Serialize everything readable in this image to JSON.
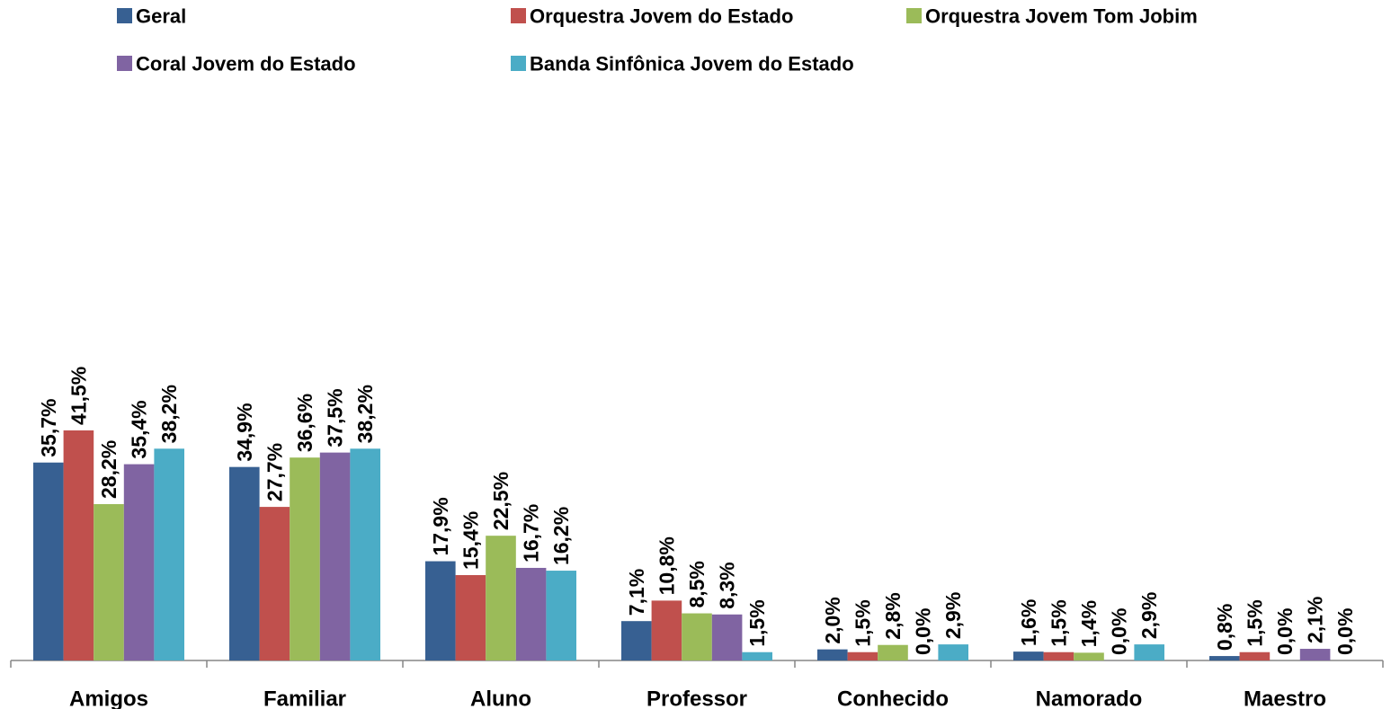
{
  "chart_data": {
    "type": "bar",
    "categories": [
      "Amigos",
      "Familiar",
      "Aluno",
      "Professor",
      "Conhecido",
      "Namorado",
      "Maestro"
    ],
    "series": [
      {
        "name": "Geral",
        "color": "#376092",
        "values": [
          35.7,
          34.9,
          17.9,
          7.1,
          2.0,
          1.6,
          0.8
        ],
        "value_labels": [
          "35,7%",
          "34,9%",
          "17,9%",
          "7,1%",
          "2,0%",
          "1,6%",
          "0,8%"
        ]
      },
      {
        "name": "Orquestra Jovem do Estado",
        "color": "#c0504d",
        "values": [
          41.5,
          27.7,
          15.4,
          10.8,
          1.5,
          1.5,
          1.5
        ],
        "value_labels": [
          "41,5%",
          "27,7%",
          "15,4%",
          "10,8%",
          "1,5%",
          "1,5%",
          "1,5%"
        ]
      },
      {
        "name": "Orquestra Jovem Tom Jobim",
        "color": "#9bbb59",
        "values": [
          28.2,
          36.6,
          22.5,
          8.5,
          2.8,
          1.4,
          0.0
        ],
        "value_labels": [
          "28,2%",
          "36,6%",
          "22,5%",
          "8,5%",
          "2,8%",
          "1,4%",
          "0,0%"
        ]
      },
      {
        "name": "Coral Jovem do Estado",
        "color": "#8064a2",
        "values": [
          35.4,
          37.5,
          16.7,
          8.3,
          0.0,
          0.0,
          2.1
        ],
        "value_labels": [
          "35,4%",
          "37,5%",
          "16,7%",
          "8,3%",
          "0,0%",
          "0,0%",
          "2,1%"
        ]
      },
      {
        "name": "Banda Sinfônica Jovem do Estado",
        "color": "#4bacc6",
        "values": [
          38.2,
          38.2,
          16.2,
          1.5,
          2.9,
          2.9,
          0.0
        ],
        "value_labels": [
          "38,2%",
          "38,2%",
          "16,2%",
          "1,5%",
          "2,9%",
          "2,9%",
          "0,0%"
        ]
      }
    ],
    "ylim": [
      0,
      100
    ]
  }
}
